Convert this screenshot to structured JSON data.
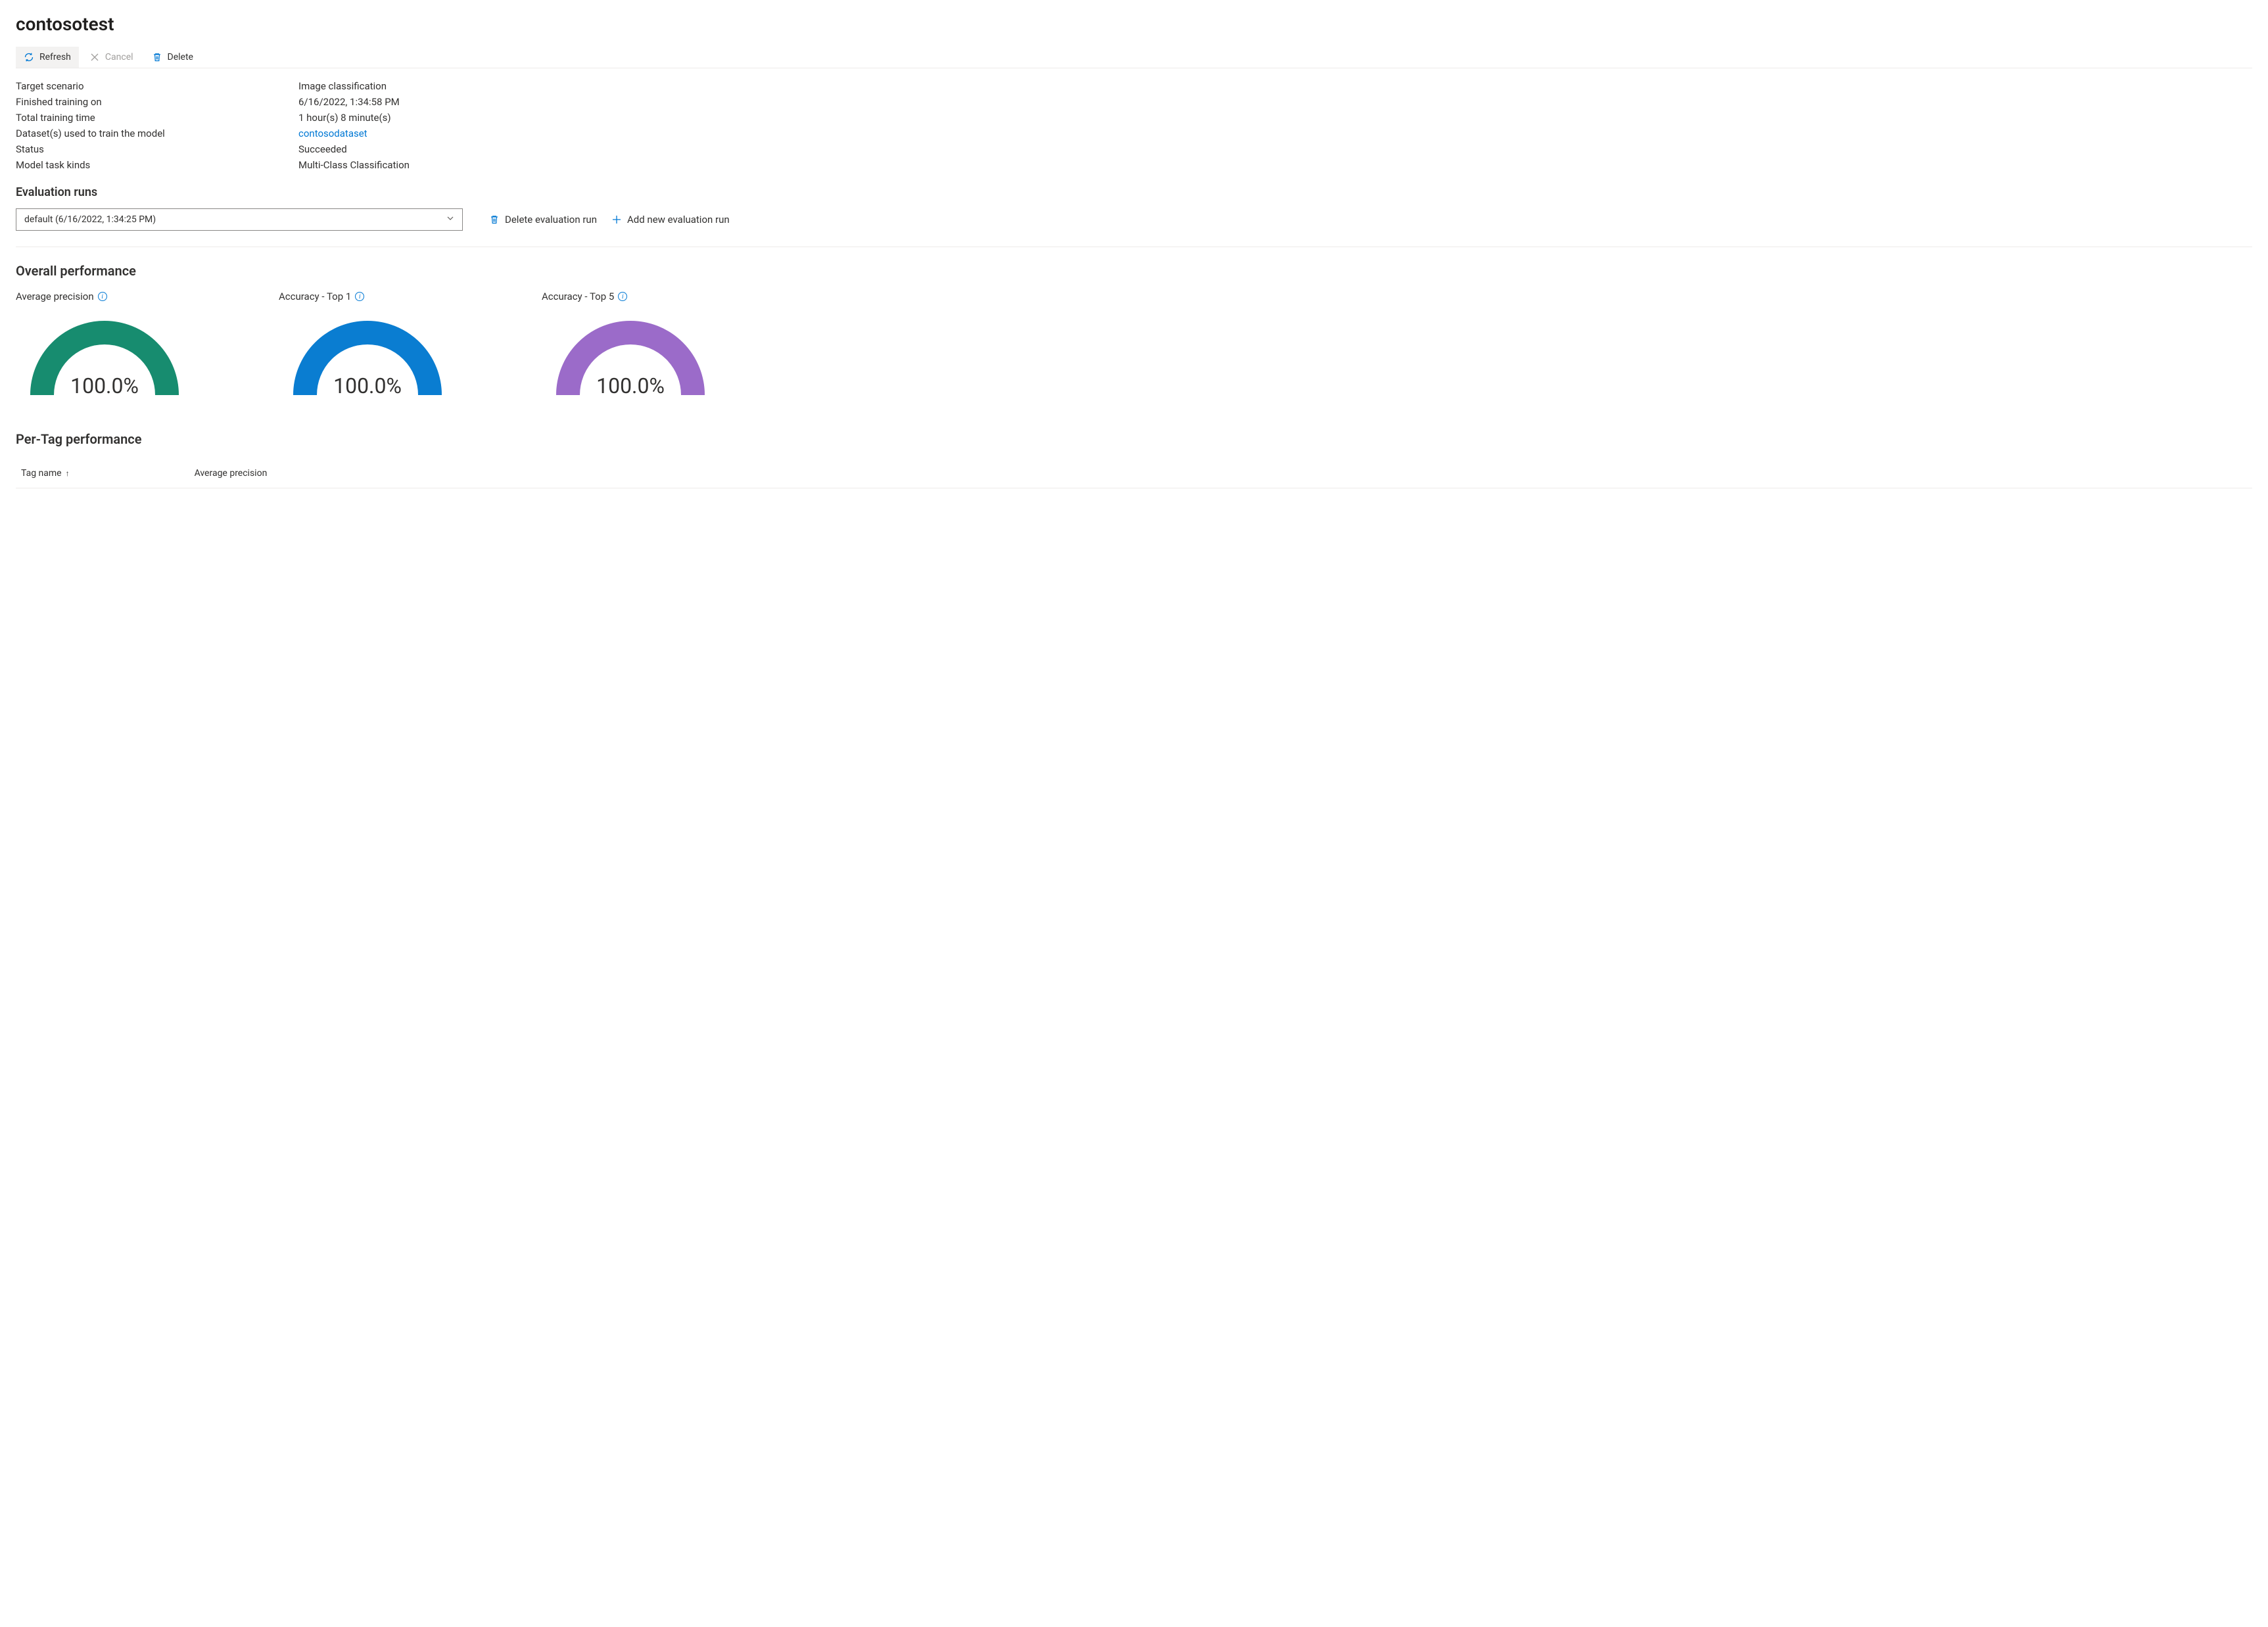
{
  "page": {
    "title": "contosotest"
  },
  "toolbar": {
    "refresh_label": "Refresh",
    "cancel_label": "Cancel",
    "delete_label": "Delete"
  },
  "details": {
    "target_scenario_label": "Target scenario",
    "target_scenario_value": "Image classification",
    "finished_label": "Finished training on",
    "finished_value": "6/16/2022, 1:34:58 PM",
    "total_time_label": "Total training time",
    "total_time_value": "1 hour(s) 8 minute(s)",
    "datasets_label": "Dataset(s) used to train the model",
    "datasets_link": "contosodataset",
    "status_label": "Status",
    "status_value": "Succeeded",
    "task_kinds_label": "Model task kinds",
    "task_kinds_value": "Multi-Class Classification"
  },
  "evaluation": {
    "section_title": "Evaluation runs",
    "selected": "default (6/16/2022, 1:34:25 PM)",
    "delete_label": "Delete evaluation run",
    "add_label": "Add new evaluation run"
  },
  "overall": {
    "section_title": "Overall performance",
    "gauges": [
      {
        "label": "Average precision",
        "value_text": "100.0%",
        "percent": 100,
        "color": "#178c6f",
        "track_color": "#e6e6e6"
      },
      {
        "label": "Accuracy - Top 1",
        "value_text": "100.0%",
        "percent": 100,
        "color": "#0a7dd1",
        "track_color": "#e6e6e6"
      },
      {
        "label": "Accuracy - Top 5",
        "value_text": "100.0%",
        "percent": 100,
        "color": "#9b6bc9",
        "track_color": "#e6e6e6"
      }
    ],
    "gauge_stroke_width": 36,
    "gauge_radius": 95,
    "gauge_width": 270,
    "gauge_height": 140
  },
  "pertag": {
    "section_title": "Per-Tag performance",
    "col_tagname": "Tag name",
    "col_avg_precision": "Average precision",
    "sort_indicator": "↑"
  },
  "colors": {
    "primary": "#0078d4",
    "text": "#323130",
    "border": "#edebe9",
    "muted": "#a19f9d"
  }
}
